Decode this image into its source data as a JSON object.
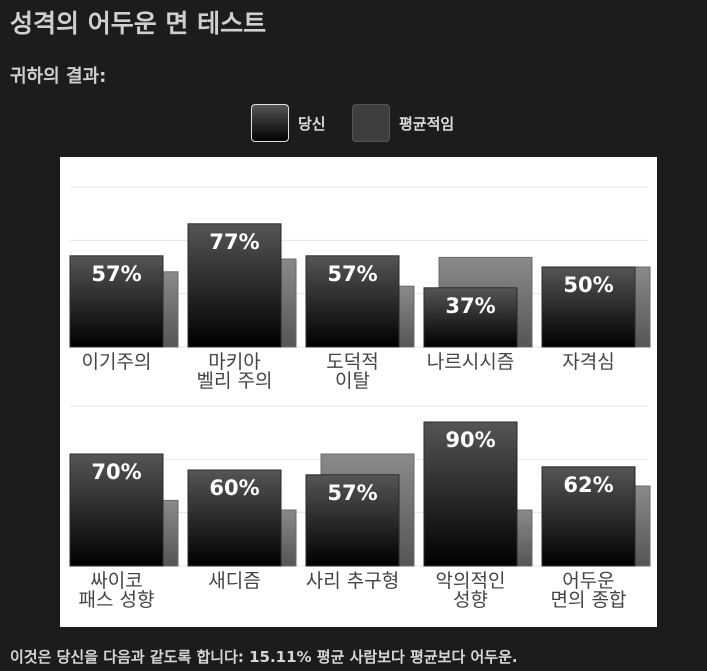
{
  "page": {
    "title": "성격의 어두운 면 테스트",
    "result_label": "귀하의 결과:",
    "footer": "이것은 당신을 다음과 같도록 합니다: 15.11% 평균 사람보다 평균보다 어두운."
  },
  "legend": {
    "you": "당신",
    "average": "평균적임"
  },
  "colors": {
    "background": "#1c1c1e",
    "chart_background": "#ffffff",
    "you_bar_top": "#555555",
    "you_bar_bottom": "#000000",
    "average_bar_top": "#8a8a8a",
    "average_bar_bottom": "#555555"
  },
  "chart_data": {
    "type": "bar",
    "ylim": [
      0,
      100
    ],
    "grid": true,
    "legend_position": "top-center",
    "series": [
      {
        "name": "당신",
        "values": [
          57,
          77,
          57,
          37,
          50,
          70,
          60,
          57,
          90,
          62
        ]
      },
      {
        "name": "평균적임",
        "values": [
          47,
          55,
          38,
          56,
          50,
          41,
          35,
          70,
          35,
          50
        ]
      }
    ],
    "categories": [
      [
        "이기주의"
      ],
      [
        "마키아",
        "벨리 주의"
      ],
      [
        "도덕적",
        "이탈"
      ],
      [
        "나르시시즘"
      ],
      [
        "자격심"
      ],
      [
        "싸이코",
        "패스 성향"
      ],
      [
        "새디즘"
      ],
      [
        "사리 추구형"
      ],
      [
        "악의적인",
        "성향"
      ],
      [
        "어두운",
        "면의 종합"
      ]
    ],
    "value_labels": [
      "57%",
      "77%",
      "57%",
      "37%",
      "50%",
      "70%",
      "60%",
      "57%",
      "90%",
      "62%"
    ]
  }
}
